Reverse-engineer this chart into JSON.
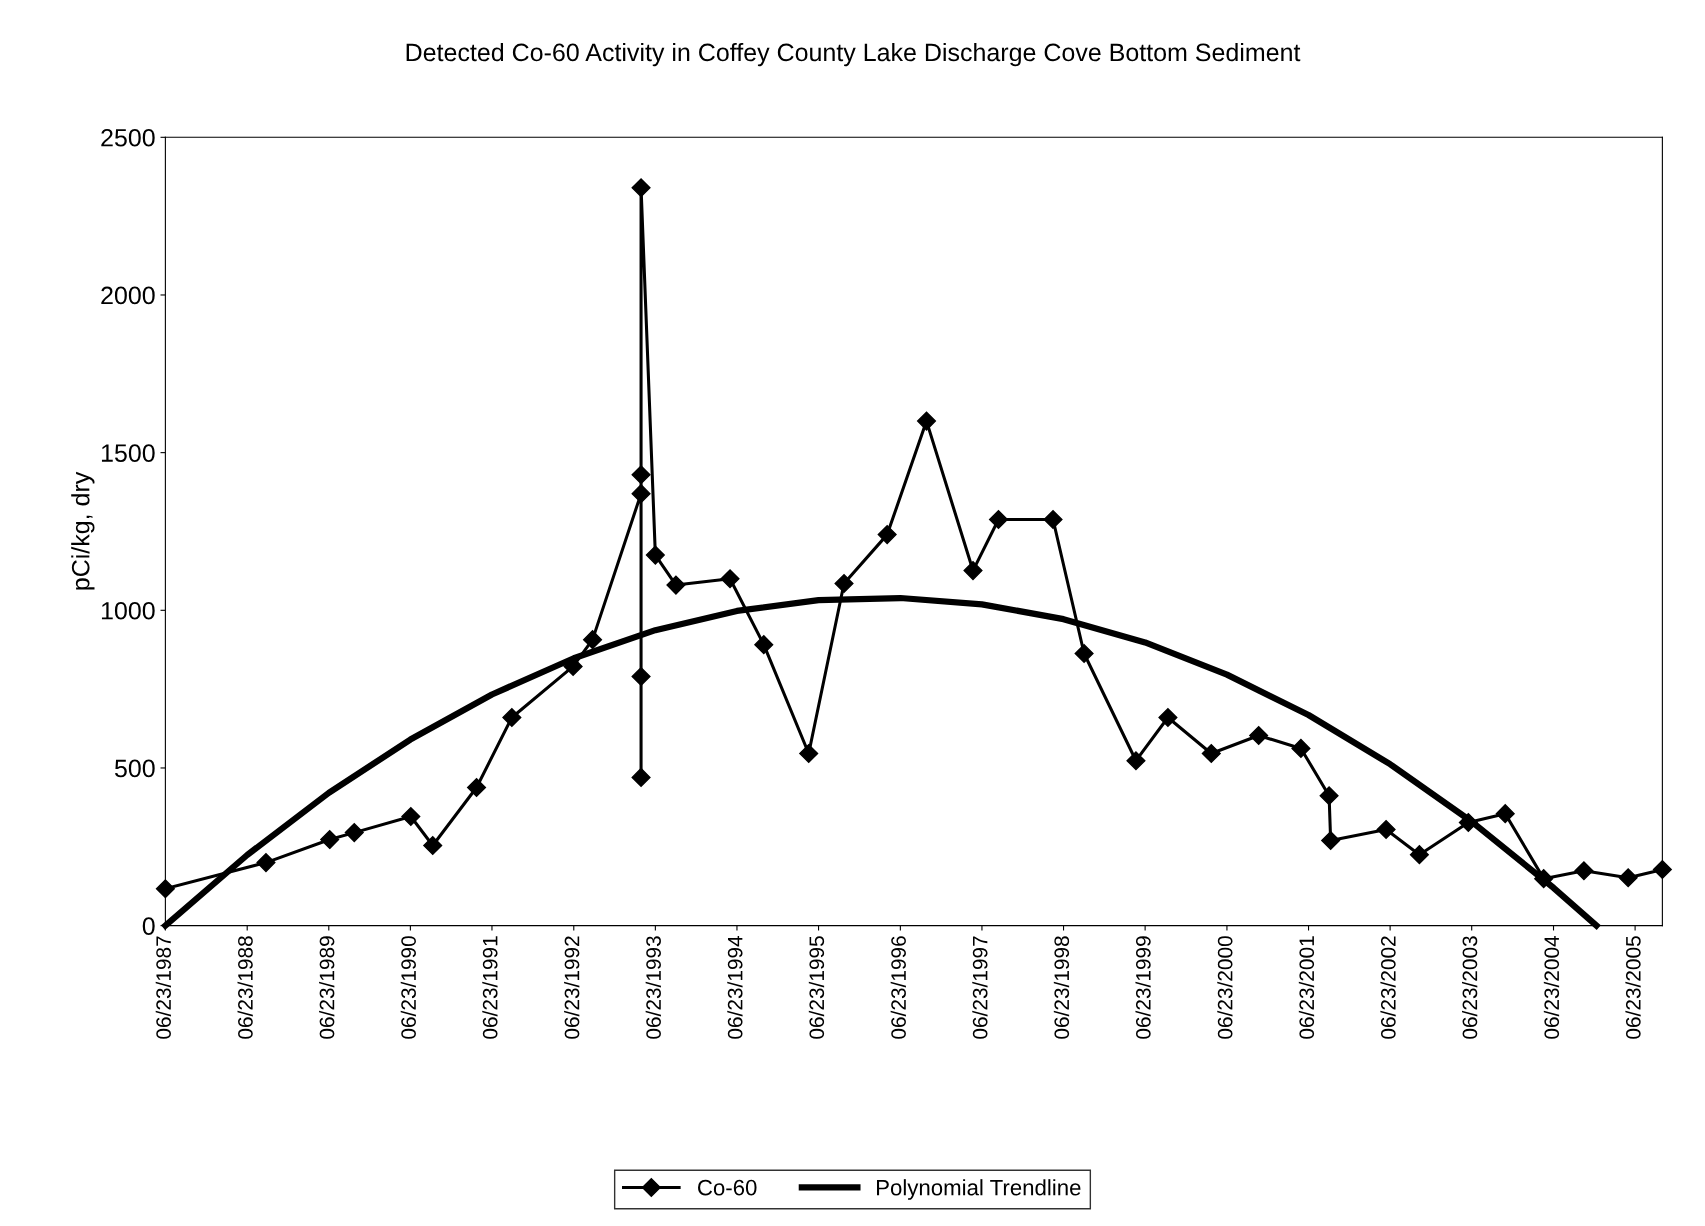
{
  "chart_data": {
    "type": "line",
    "title": "Detected Co-60 Activity in Coffey County Lake Discharge Cove Bottom Sediment",
    "ylabel": "pCi/kg, dry",
    "xlim": [
      "1987-06-23",
      "2005-10-23"
    ],
    "ylim": [
      0,
      2500
    ],
    "yticks": [
      0,
      500,
      1000,
      1500,
      2000,
      2500
    ],
    "xticks": [
      {
        "value": "1987-06-23",
        "label": "06/23/1987"
      },
      {
        "value": "1988-06-23",
        "label": "06/23/1988"
      },
      {
        "value": "1989-06-23",
        "label": "06/23/1989"
      },
      {
        "value": "1990-06-23",
        "label": "06/23/1990"
      },
      {
        "value": "1991-06-23",
        "label": "06/23/1991"
      },
      {
        "value": "1992-06-23",
        "label": "06/23/1992"
      },
      {
        "value": "1993-06-23",
        "label": "06/23/1993"
      },
      {
        "value": "1994-06-23",
        "label": "06/23/1994"
      },
      {
        "value": "1995-06-23",
        "label": "06/23/1995"
      },
      {
        "value": "1996-06-23",
        "label": "06/23/1996"
      },
      {
        "value": "1997-06-23",
        "label": "06/23/1997"
      },
      {
        "value": "1998-06-23",
        "label": "06/23/1998"
      },
      {
        "value": "1999-06-23",
        "label": "06/23/1999"
      },
      {
        "value": "2000-06-23",
        "label": "06/23/2000"
      },
      {
        "value": "2001-06-23",
        "label": "06/23/2001"
      },
      {
        "value": "2002-06-23",
        "label": "06/23/2002"
      },
      {
        "value": "2003-06-23",
        "label": "06/23/2003"
      },
      {
        "value": "2004-06-23",
        "label": "06/23/2004"
      },
      {
        "value": "2005-06-23",
        "label": "06/23/2005"
      }
    ],
    "grid": false,
    "legend": "bottom",
    "series": [
      {
        "name": "Co-60",
        "color": "#000000",
        "marker": "diamond",
        "line_style": "solid",
        "x": [
          "1987-06-23",
          "1988-09-15",
          "1989-06-27",
          "1989-10-15",
          "1990-06-25",
          "1990-10-01",
          "1991-04-15",
          "1991-09-20",
          "1992-06-20",
          "1992-09-15",
          "1993-04-20",
          "1993-04-20",
          "1993-04-20",
          "1993-04-20",
          "1993-04-20",
          "1993-06-23",
          "1993-09-23",
          "1994-05-23",
          "1994-10-21",
          "1995-05-10",
          "1995-10-15",
          "1996-04-25",
          "1996-10-18",
          "1997-05-14",
          "1997-09-05",
          "1998-05-07",
          "1998-09-23",
          "1999-05-13",
          "1999-10-03",
          "2000-04-14",
          "2000-11-12",
          "2001-05-20",
          "2001-09-23",
          "2001-09-30",
          "2002-06-05",
          "2002-11-01",
          "2003-06-08",
          "2003-11-20",
          "2004-05-10",
          "2004-11-06",
          "2005-05-23",
          "2005-10-23"
        ],
        "values": [
          117,
          200,
          273,
          295,
          346,
          254,
          438,
          660,
          822,
          907,
          1370,
          1430,
          790,
          470,
          2340,
          1175,
          1080,
          1100,
          891,
          546,
          1085,
          1240,
          1600,
          1126,
          1288,
          1288,
          863,
          523,
          660,
          546,
          603,
          562,
          412,
          270,
          305,
          225,
          327,
          355,
          149,
          174,
          152,
          178
        ]
      },
      {
        "name": "Polynomial Trendline",
        "color": "#000000",
        "marker": "none",
        "line_style": "solid",
        "x": [
          "1987-06-23",
          "1988-06-23",
          "1989-06-23",
          "1990-06-23",
          "1991-06-23",
          "1992-06-23",
          "1993-06-23",
          "1994-06-23",
          "1995-06-23",
          "1996-06-23",
          "1997-06-23",
          "1998-06-23",
          "1999-06-23",
          "2000-06-23",
          "2001-06-23",
          "2002-06-23",
          "2003-06-23",
          "2004-06-23",
          "2005-01-01"
        ],
        "values": [
          0,
          224,
          421,
          590,
          733,
          848,
          937,
          998,
          1032,
          1039,
          1019,
          972,
          898,
          796,
          668,
          512,
          330,
          120,
          0
        ]
      }
    ]
  }
}
